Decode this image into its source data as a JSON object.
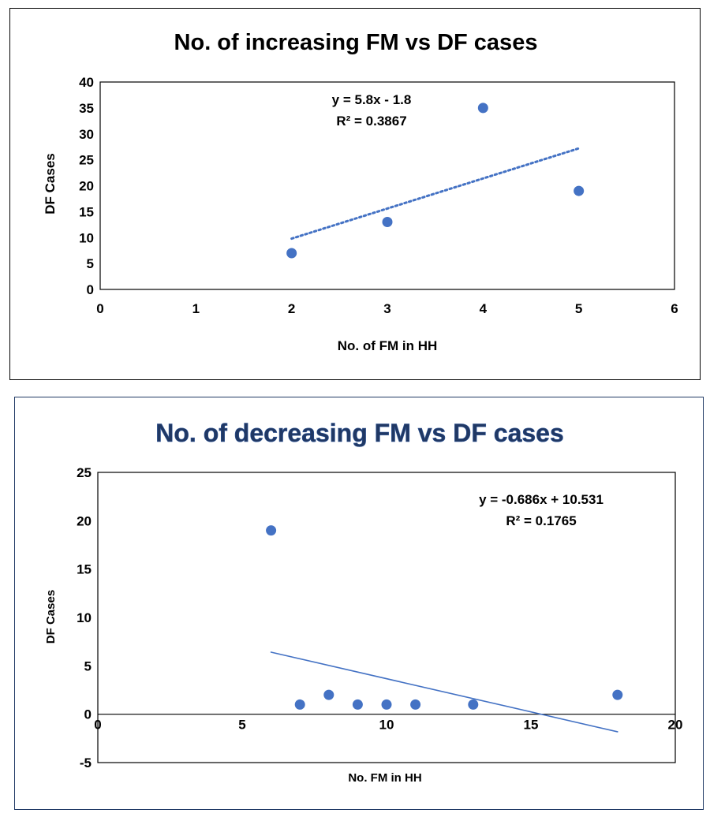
{
  "chart_data": [
    {
      "type": "scatter",
      "title": "No. of increasing FM vs DF cases",
      "xlabel": "No. of FM in HH",
      "ylabel": "DF Cases",
      "xlim": [
        0,
        6
      ],
      "ylim": [
        0,
        40
      ],
      "xticks": [
        0,
        1,
        2,
        3,
        4,
        5,
        6
      ],
      "yticks": [
        0,
        5,
        10,
        15,
        20,
        25,
        30,
        35,
        40
      ],
      "grid": false,
      "point_color": "#4472C4",
      "points": [
        {
          "x": 2,
          "y": 7
        },
        {
          "x": 3,
          "y": 13
        },
        {
          "x": 4,
          "y": 35
        },
        {
          "x": 5,
          "y": 19
        }
      ],
      "trendline": {
        "style": "dotted",
        "slope": 5.8,
        "intercept": -1.8,
        "x_range": [
          2,
          5
        ],
        "equation": "y = 5.8x - 1.8",
        "r_squared": "R² = 0.3867"
      }
    },
    {
      "type": "scatter",
      "title": "No. of decreasing FM vs DF cases",
      "xlabel": "No. FM in HH",
      "ylabel": "DF Cases",
      "xlim": [
        0,
        20
      ],
      "ylim": [
        -5,
        25
      ],
      "xticks": [
        0,
        5,
        10,
        15,
        20
      ],
      "yticks": [
        -5,
        0,
        5,
        10,
        15,
        20,
        25
      ],
      "grid": false,
      "point_color": "#4472C4",
      "points": [
        {
          "x": 6,
          "y": 19
        },
        {
          "x": 7,
          "y": 1
        },
        {
          "x": 8,
          "y": 2
        },
        {
          "x": 9,
          "y": 1
        },
        {
          "x": 10,
          "y": 1
        },
        {
          "x": 11,
          "y": 1
        },
        {
          "x": 13,
          "y": 1
        },
        {
          "x": 18,
          "y": 2
        }
      ],
      "trendline": {
        "style": "solid",
        "slope": -0.686,
        "intercept": 10.531,
        "x_range": [
          6,
          18
        ],
        "equation": "y = -0.686x + 10.531",
        "r_squared": "R² = 0.1765"
      }
    }
  ]
}
